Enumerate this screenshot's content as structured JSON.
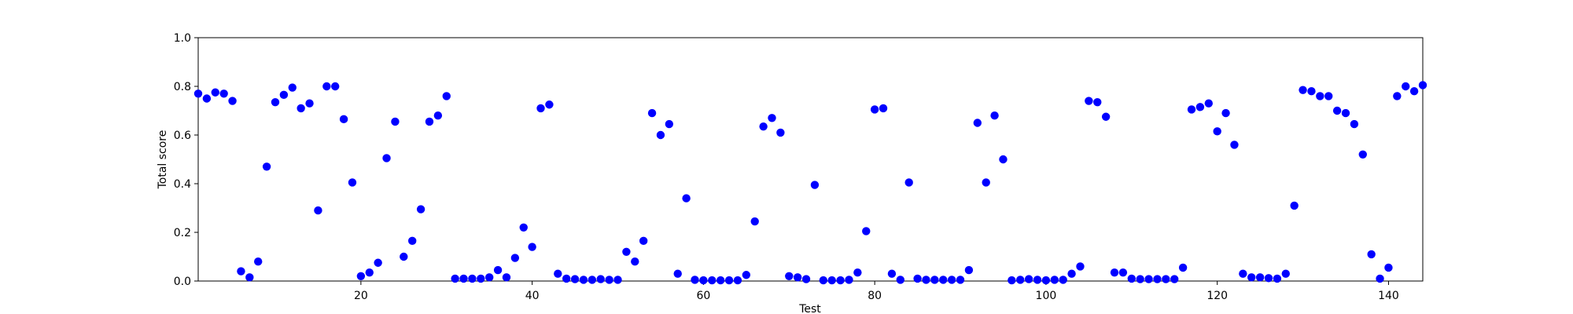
{
  "chart_data": {
    "type": "scatter",
    "xlabel": "Test",
    "ylabel": "Total score",
    "xlim": [
      1,
      144
    ],
    "ylim": [
      0,
      1.0
    ],
    "xticks": [
      "20",
      "40",
      "60",
      "80",
      "100",
      "120",
      "140"
    ],
    "yticks": [
      "0.0",
      "0.2",
      "0.4",
      "0.6",
      "0.8",
      "1.0"
    ],
    "grid": false,
    "marker_color": "#0000ff",
    "x": [
      1,
      2,
      3,
      4,
      5,
      6,
      7,
      8,
      9,
      10,
      11,
      12,
      13,
      14,
      15,
      16,
      17,
      18,
      19,
      20,
      21,
      22,
      23,
      24,
      25,
      26,
      27,
      28,
      29,
      30,
      31,
      32,
      33,
      34,
      35,
      36,
      37,
      38,
      39,
      40,
      41,
      42,
      43,
      44,
      45,
      46,
      47,
      48,
      49,
      50,
      51,
      52,
      53,
      54,
      55,
      56,
      57,
      58,
      59,
      60,
      61,
      62,
      63,
      64,
      65,
      66,
      67,
      68,
      69,
      70,
      71,
      72,
      73,
      74,
      75,
      76,
      77,
      78,
      79,
      80,
      81,
      82,
      83,
      84,
      85,
      86,
      87,
      88,
      89,
      90,
      91,
      92,
      93,
      94,
      95,
      96,
      97,
      98,
      99,
      100,
      101,
      102,
      103,
      104,
      105,
      106,
      107,
      108,
      109,
      110,
      111,
      112,
      113,
      114,
      115,
      116,
      117,
      118,
      119,
      120,
      121,
      122,
      123,
      124,
      125,
      126,
      127,
      128,
      129,
      130,
      131,
      132,
      133,
      134,
      135,
      136,
      137,
      138,
      139,
      140,
      141,
      142,
      143,
      144
    ],
    "y": [
      0.77,
      0.75,
      0.775,
      0.77,
      0.74,
      0.04,
      0.015,
      0.08,
      0.47,
      0.735,
      0.765,
      0.795,
      0.71,
      0.73,
      0.29,
      0.8,
      0.8,
      0.665,
      0.405,
      0.02,
      0.035,
      0.075,
      0.505,
      0.655,
      0.1,
      0.165,
      0.295,
      0.655,
      0.68,
      0.76,
      0.01,
      0.01,
      0.01,
      0.01,
      0.015,
      0.045,
      0.015,
      0.095,
      0.22,
      0.14,
      0.71,
      0.725,
      0.03,
      0.01,
      0.008,
      0.005,
      0.005,
      0.008,
      0.005,
      0.005,
      0.12,
      0.08,
      0.165,
      0.69,
      0.6,
      0.645,
      0.03,
      0.34,
      0.005,
      0.003,
      0.003,
      0.003,
      0.003,
      0.003,
      0.025,
      0.245,
      0.635,
      0.67,
      0.61,
      0.02,
      0.015,
      0.008,
      0.395,
      0.003,
      0.003,
      0.003,
      0.005,
      0.035,
      0.205,
      0.705,
      0.71,
      0.03,
      0.005,
      0.405,
      0.01,
      0.005,
      0.005,
      0.005,
      0.005,
      0.005,
      0.045,
      0.65,
      0.405,
      0.68,
      0.5,
      0.003,
      0.005,
      0.008,
      0.005,
      0.003,
      0.005,
      0.005,
      0.03,
      0.06,
      0.74,
      0.735,
      0.675,
      0.035,
      0.035,
      0.01,
      0.008,
      0.008,
      0.008,
      0.008,
      0.008,
      0.055,
      0.705,
      0.715,
      0.73,
      0.615,
      0.69,
      0.56,
      0.03,
      0.015,
      0.015,
      0.012,
      0.01,
      0.03,
      0.31,
      0.785,
      0.78,
      0.76,
      0.76,
      0.7,
      0.69,
      0.645,
      0.52,
      0.11,
      0.01,
      0.055,
      0.76,
      0.8,
      0.78,
      0.805
    ]
  }
}
